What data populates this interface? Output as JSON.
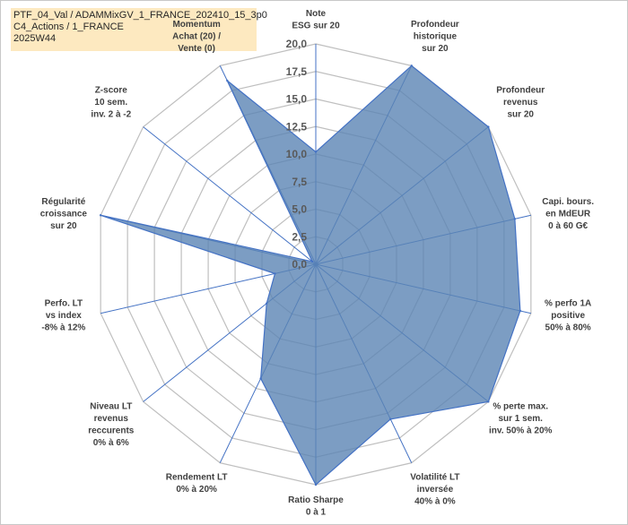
{
  "title_lines": [
    "PTF_04_Val / ADAMMixGV_1_FRANCE_202410_15_3p0",
    "C4_Actions / 1_FRANCE",
    "2025W44"
  ],
  "colors": {
    "fill": "#5b84b4",
    "stroke": "#4472c4",
    "grid": "#bfbfbf",
    "spoke": "#4472c4",
    "title_bg": "#fde9c0"
  },
  "chart_data": {
    "type": "radar",
    "title": "",
    "rmax": 20,
    "ticks": [
      "0,0",
      "2,5",
      "5,0",
      "7,5",
      "10,0",
      "12,5",
      "15,0",
      "17,5",
      "20,0"
    ],
    "tick_values": [
      0,
      2.5,
      5,
      7.5,
      10,
      12.5,
      15,
      17.5,
      20
    ],
    "grid": true,
    "categories": [
      [
        "Note",
        "ESG sur 20"
      ],
      [
        "Profondeur",
        "historique",
        "sur 20"
      ],
      [
        "Profondeur",
        "revenus",
        "sur 20"
      ],
      [
        "Capi. bours.",
        "en MdEUR",
        "0 à 60 G€"
      ],
      [
        "% perfo 1A",
        "positive",
        "50% à 80%"
      ],
      [
        "% perte max.",
        "sur 1 sem.",
        "inv. 50% à 20%"
      ],
      [
        "Volatilité LT",
        "inversée",
        "40% à 0%"
      ],
      [
        "Ratio Sharpe",
        "0 à 1"
      ],
      [
        "Rendement LT",
        "0% à 20%"
      ],
      [
        "Niveau LT",
        "revenus",
        "reccurents",
        "0% à 6%"
      ],
      [
        "Perfo. LT",
        "vs index",
        "-8% à 12%"
      ],
      [
        "Régularité",
        "croissance",
        "sur 20"
      ],
      [
        "Z-score",
        "10 sem.",
        "inv. 2 à -2"
      ],
      [
        "Momentum",
        "Achat (20) /",
        "Vente (0)"
      ]
    ],
    "values": [
      10.2,
      20,
      20,
      18.5,
      19,
      20,
      15.6,
      20,
      11.5,
      5.7,
      3.8,
      20,
      0.4,
      18.5
    ]
  }
}
